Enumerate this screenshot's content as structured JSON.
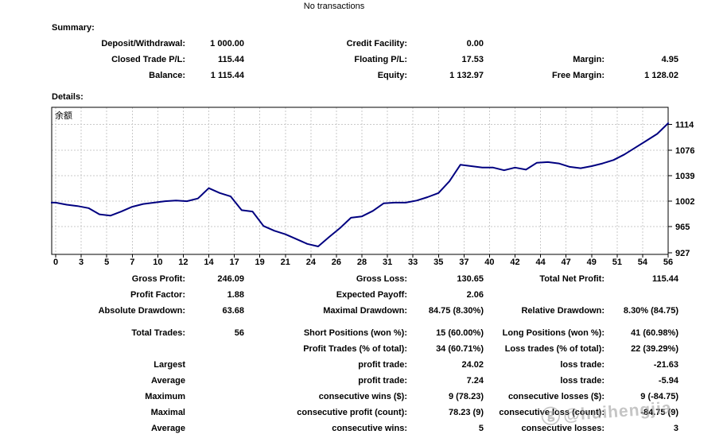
{
  "title": "No transactions",
  "summary": {
    "heading": "Summary:",
    "rows": [
      {
        "l1": "Deposit/Withdrawal:",
        "v1": "1 000.00",
        "l2": "Credit Facility:",
        "v2": "0.00",
        "l3": "",
        "v3": ""
      },
      {
        "l1": "Closed Trade P/L:",
        "v1": "115.44",
        "l2": "Floating P/L:",
        "v2": "17.53",
        "l3": "Margin:",
        "v3": "4.95"
      },
      {
        "l1": "Balance:",
        "v1": "1 115.44",
        "l2": "Equity:",
        "v2": "1 132.97",
        "l3": "Free Margin:",
        "v3": "1 128.02"
      }
    ]
  },
  "details_heading": "Details:",
  "chart_data": {
    "type": "line",
    "title": "余额",
    "series_label": "余额",
    "line_color": "#000080",
    "grid": true,
    "legend_position": "top-left",
    "ylim": [
      925,
      1140
    ],
    "x_ticks": [
      0,
      3,
      5,
      7,
      10,
      12,
      14,
      17,
      19,
      21,
      24,
      26,
      28,
      31,
      33,
      35,
      37,
      40,
      42,
      44,
      47,
      49,
      51,
      54,
      56
    ],
    "y_ticks": [
      1114,
      1076,
      1039,
      1002,
      965,
      927
    ],
    "x": [
      0,
      1,
      2,
      3,
      4,
      5,
      6,
      7,
      8,
      9,
      10,
      11,
      12,
      13,
      14,
      15,
      16,
      17,
      18,
      19,
      20,
      21,
      22,
      23,
      24,
      25,
      26,
      27,
      28,
      29,
      30,
      31,
      32,
      33,
      34,
      35,
      36,
      37,
      38,
      39,
      40,
      41,
      42,
      43,
      44,
      45,
      46,
      47,
      48,
      49,
      50,
      51,
      52,
      53,
      54,
      55,
      56
    ],
    "values": [
      1000,
      997,
      995,
      992,
      983,
      981,
      987,
      994,
      998,
      1000,
      1002,
      1003,
      1002,
      1006,
      1021,
      1014,
      1009,
      989,
      987,
      966,
      959,
      954,
      947,
      940,
      936.3,
      950,
      963,
      978,
      980,
      988,
      999,
      1000,
      1000,
      1003,
      1008,
      1014,
      1031,
      1055,
      1053,
      1051,
      1051,
      1047,
      1051,
      1048,
      1058,
      1059,
      1057,
      1052,
      1050,
      1053,
      1057,
      1062,
      1070,
      1080,
      1090,
      1100,
      1115.44
    ]
  },
  "stats": {
    "rows": [
      {
        "l1": "Gross Profit:",
        "v1": "246.09",
        "l2": "Gross Loss:",
        "v2": "130.65",
        "l3": "Total Net Profit:",
        "v3": "115.44"
      },
      {
        "l1": "Profit Factor:",
        "v1": "1.88",
        "l2": "Expected Payoff:",
        "v2": "2.06",
        "l3": "",
        "v3": ""
      },
      {
        "l1": "Absolute Drawdown:",
        "v1": "63.68",
        "l2": "Maximal Drawdown:",
        "v2": "84.75 (8.30%)",
        "l3": "Relative Drawdown:",
        "v3": "8.30% (84.75)"
      },
      {
        "gap": true,
        "l1": "Total Trades:",
        "v1": "56",
        "l2": "Short Positions (won %):",
        "v2": "15 (60.00%)",
        "l3": "Long Positions (won %):",
        "v3": "41 (60.98%)"
      },
      {
        "l1": "",
        "v1": "",
        "l2": "Profit Trades (% of total):",
        "v2": "34 (60.71%)",
        "l3": "Loss trades (% of total):",
        "v3": "22 (39.29%)"
      },
      {
        "l1": "Largest",
        "v1": "",
        "l2": "profit trade:",
        "v2": "24.02",
        "l3": "loss trade:",
        "v3": "-21.63"
      },
      {
        "l1": "Average",
        "v1": "",
        "l2": "profit trade:",
        "v2": "7.24",
        "l3": "loss trade:",
        "v3": "-5.94"
      },
      {
        "l1": "Maximum",
        "v1": "",
        "l2": "consecutive wins ($):",
        "v2": "9 (78.23)",
        "l3": "consecutive losses ($):",
        "v3": "9 (-84.75)"
      },
      {
        "l1": "Maximal",
        "v1": "",
        "l2": "consecutive profit (count):",
        "v2": "78.23 (9)",
        "l3": "consecutive loss (count):",
        "v3": "-84.75 (9)"
      },
      {
        "l1": "Average",
        "v1": "",
        "l2": "consecutive wins:",
        "v2": "5",
        "l3": "consecutive losses:",
        "v3": "3"
      }
    ]
  },
  "watermark": {
    "icon": "ⓖ",
    "text": "@huihengjia"
  }
}
